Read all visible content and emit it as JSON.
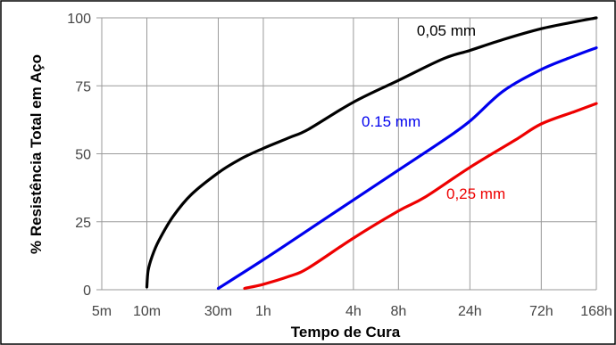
{
  "chart_data": {
    "type": "line",
    "title": "",
    "xlabel": "Tempo de Cura",
    "ylabel": "% Resistência Total em Aço",
    "x_scale": "log",
    "x_unit": "hours",
    "ylim": [
      0,
      100
    ],
    "grid": true,
    "legend": "inline labels",
    "x_ticks": [
      {
        "label": "5m",
        "hours": 0.0833
      },
      {
        "label": "10m",
        "hours": 0.1667
      },
      {
        "label": "30m",
        "hours": 0.5
      },
      {
        "label": "1h",
        "hours": 1
      },
      {
        "label": "4h",
        "hours": 4
      },
      {
        "label": "8h",
        "hours": 8
      },
      {
        "label": "24h",
        "hours": 24
      },
      {
        "label": "72h",
        "hours": 72
      },
      {
        "label": "168h",
        "hours": 168
      }
    ],
    "y_ticks": [
      {
        "label": "0",
        "value": 0
      },
      {
        "label": "25",
        "value": 25
      },
      {
        "label": "50",
        "value": 50
      },
      {
        "label": "75",
        "value": 75
      },
      {
        "label": "100",
        "value": 100
      }
    ],
    "series": [
      {
        "name": "0,05 mm",
        "color": "#000000",
        "points": [
          [
            0.1667,
            1
          ],
          [
            0.17,
            7
          ],
          [
            0.18,
            12
          ],
          [
            0.2,
            18
          ],
          [
            0.25,
            27
          ],
          [
            0.33,
            35
          ],
          [
            0.5,
            43
          ],
          [
            0.7,
            48
          ],
          [
            1,
            52
          ],
          [
            1.5,
            56
          ],
          [
            2,
            59
          ],
          [
            4,
            69
          ],
          [
            8,
            77
          ],
          [
            16,
            85
          ],
          [
            24,
            88
          ],
          [
            40,
            92
          ],
          [
            72,
            96
          ],
          [
            120,
            98.5
          ],
          [
            168,
            100
          ]
        ]
      },
      {
        "name": "0.15 mm",
        "color": "#0000ee",
        "points": [
          [
            0.5,
            0.5
          ],
          [
            1,
            11
          ],
          [
            2,
            22
          ],
          [
            4,
            33
          ],
          [
            8,
            44
          ],
          [
            16,
            55
          ],
          [
            24,
            62
          ],
          [
            40,
            73
          ],
          [
            72,
            81
          ],
          [
            120,
            86
          ],
          [
            168,
            89
          ]
        ]
      },
      {
        "name": "0,25 mm",
        "color": "#ee0000",
        "points": [
          [
            0.75,
            0.5
          ],
          [
            1,
            2
          ],
          [
            1.5,
            5
          ],
          [
            2,
            8
          ],
          [
            4,
            19
          ],
          [
            8,
            29
          ],
          [
            12,
            34
          ],
          [
            24,
            45
          ],
          [
            48,
            55
          ],
          [
            72,
            61
          ],
          [
            120,
            65.5
          ],
          [
            168,
            68.5
          ]
        ]
      }
    ]
  }
}
